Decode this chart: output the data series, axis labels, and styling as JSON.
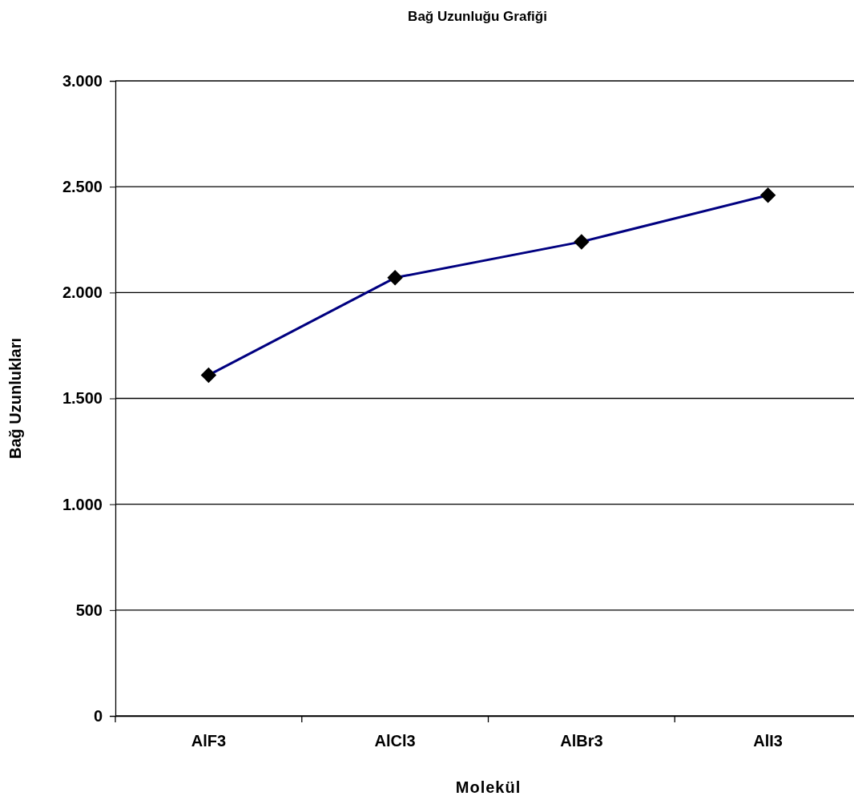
{
  "chart_data": {
    "type": "line",
    "title": "Bağ Uzunluğu Grafiği",
    "xlabel": "Molekül",
    "ylabel": "Bağ Uzunlukları",
    "categories": [
      "AlF3",
      "AlCl3",
      "AlBr3",
      "AlI3"
    ],
    "series": [
      {
        "color": "#000080",
        "values": [
          1610,
          2070,
          2240,
          2460
        ]
      }
    ],
    "ylim": [
      0,
      3000
    ],
    "yticks": [
      {
        "value": 0,
        "label": "0"
      },
      {
        "value": 500,
        "label": "500"
      },
      {
        "value": 1000,
        "label": "1.000"
      },
      {
        "value": 1500,
        "label": "1.500"
      },
      {
        "value": 2000,
        "label": "2.000"
      },
      {
        "value": 2500,
        "label": "2.500"
      },
      {
        "value": 3000,
        "label": "3.000"
      }
    ],
    "grid": "y",
    "marker": "diamond",
    "line_style": "solid"
  }
}
